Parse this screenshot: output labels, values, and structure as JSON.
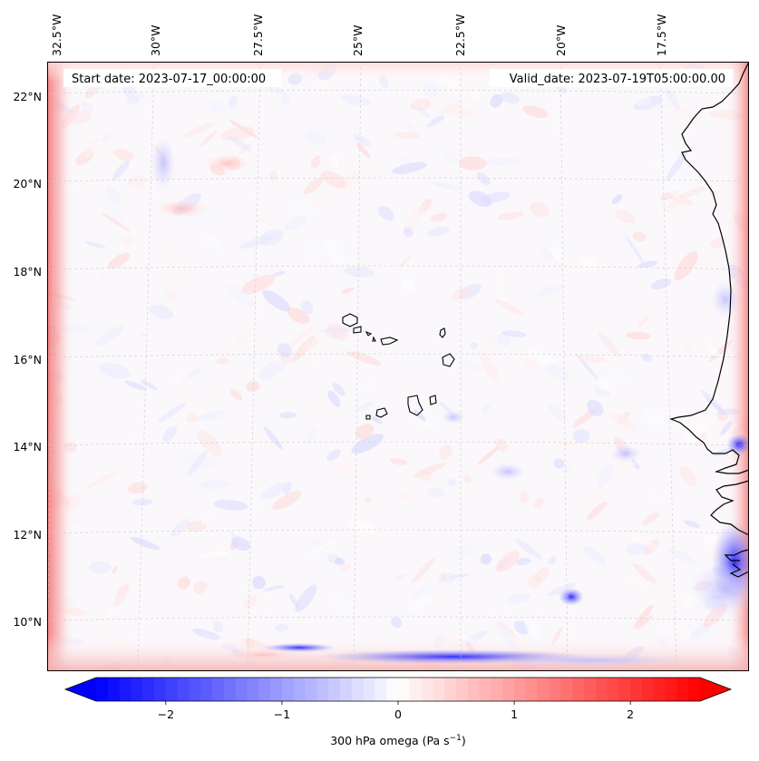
{
  "map": {
    "start_date": "Start date: 2023-07-17_00:00:00",
    "valid_date": "Valid_date: 2023-07-19T05:00:00.00",
    "lon_labels": [
      "32.5°W",
      "30°W",
      "27.5°W",
      "25°W",
      "22.5°W",
      "20°W",
      "17.5°W"
    ],
    "lat_labels": [
      "22°N",
      "20°N",
      "18°N",
      "16°N",
      "14°N",
      "12°N",
      "10°N"
    ],
    "grid": true,
    "coastline_color": "#000000"
  },
  "colorbar": {
    "ticks": [
      "−2",
      "−1",
      "0",
      "1",
      "2"
    ],
    "tick_values": [
      -2,
      -1,
      0,
      1,
      2
    ],
    "range": [
      -2.6,
      2.6
    ],
    "label_main": "300 hPa omega (Pa s",
    "label_exp": "−1",
    "label_end": ")",
    "colors": {
      "min": "#0000ff",
      "mid": "#ffffff",
      "max": "#ff0000"
    }
  }
}
